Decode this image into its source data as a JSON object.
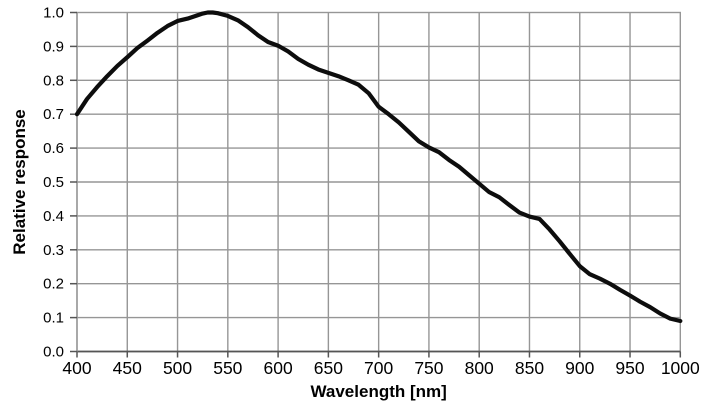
{
  "chart_data": {
    "type": "line",
    "title": "",
    "xlabel": "Wavelength [nm]",
    "ylabel": "Relative response",
    "xlim": [
      400,
      1000
    ],
    "ylim": [
      0.0,
      1.0
    ],
    "grid": true,
    "legend": false,
    "x_ticks": [
      400,
      450,
      500,
      550,
      600,
      650,
      700,
      750,
      800,
      850,
      900,
      950,
      1000
    ],
    "x_tick_labels": [
      "400",
      "450",
      "500",
      "550",
      "600",
      "650",
      "700",
      "750",
      "800",
      "850",
      "900",
      "950",
      "1000"
    ],
    "y_ticks": [
      0.0,
      0.1,
      0.2,
      0.3,
      0.4,
      0.5,
      0.6,
      0.7,
      0.8,
      0.9,
      1.0
    ],
    "y_tick_labels": [
      "0.0",
      "0.1",
      "0.2",
      "0.3",
      "0.4",
      "0.5",
      "0.6",
      "0.7",
      "0.8",
      "0.9",
      "1.0"
    ],
    "series": [
      {
        "name": "Relative response",
        "color": "#0d0d0d",
        "x": [
          400,
          410,
          420,
          430,
          440,
          450,
          460,
          470,
          480,
          490,
          500,
          510,
          520,
          525,
          530,
          535,
          540,
          550,
          560,
          570,
          580,
          590,
          600,
          610,
          620,
          630,
          640,
          650,
          660,
          670,
          680,
          690,
          700,
          710,
          720,
          730,
          740,
          750,
          760,
          770,
          780,
          790,
          800,
          810,
          820,
          830,
          840,
          850,
          860,
          870,
          880,
          890,
          900,
          910,
          920,
          930,
          940,
          950,
          960,
          970,
          980,
          990,
          1000
        ],
        "y": [
          0.7,
          0.745,
          0.78,
          0.812,
          0.842,
          0.868,
          0.895,
          0.917,
          0.94,
          0.96,
          0.975,
          0.982,
          0.992,
          0.997,
          1.0,
          1.0,
          0.998,
          0.99,
          0.977,
          0.957,
          0.933,
          0.913,
          0.902,
          0.885,
          0.863,
          0.846,
          0.832,
          0.822,
          0.812,
          0.8,
          0.787,
          0.762,
          0.722,
          0.7,
          0.676,
          0.648,
          0.62,
          0.602,
          0.588,
          0.565,
          0.545,
          0.52,
          0.495,
          0.47,
          0.455,
          0.432,
          0.41,
          0.398,
          0.391,
          0.36,
          0.325,
          0.288,
          0.252,
          0.228,
          0.215,
          0.2,
          0.182,
          0.165,
          0.147,
          0.131,
          0.112,
          0.097,
          0.09
        ]
      }
    ]
  },
  "colors": {
    "background": "#ffffff",
    "grid": "#969696",
    "plot_border": "#969696",
    "axis": "#555555",
    "tick": "#555555",
    "curve": "#0d0d0d",
    "text": "#000000"
  }
}
